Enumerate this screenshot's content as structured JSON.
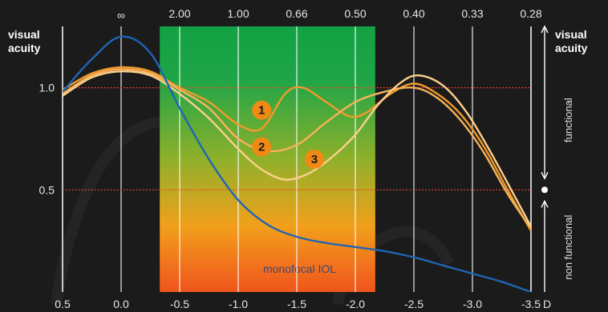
{
  "chart_data": {
    "type": "line",
    "title": "",
    "xlabel": "D",
    "ylabel": "visual acuity",
    "right_ylabel": "visual acuity",
    "x_ticks": [
      "0.5",
      "0.0",
      "-0.5",
      "-1.0",
      "-1.5",
      "-2.0",
      "-2.5",
      "-3.0",
      "-3.5"
    ],
    "x_unit": "D",
    "top_ticks": [
      {
        "at": 0.0,
        "label": "∞"
      },
      {
        "at": -0.5,
        "label": "2.00"
      },
      {
        "at": -1.0,
        "label": "1.00"
      },
      {
        "at": -1.5,
        "label": "0.66"
      },
      {
        "at": -2.0,
        "label": "0.50"
      },
      {
        "at": -2.5,
        "label": "0.40"
      },
      {
        "at": -3.0,
        "label": "0.33"
      },
      {
        "at": -3.5,
        "label": "0.28"
      }
    ],
    "y_ticks": [
      "1.0",
      "0.5"
    ],
    "y_tick_values": [
      1.0,
      0.5
    ],
    "xlim": [
      0.5,
      -3.5
    ],
    "ylim": [
      0,
      1.3
    ],
    "reference_lines": [
      1.0,
      0.5
    ],
    "highlight_band": {
      "from": -0.33,
      "to": -2.17
    },
    "right_annotations": {
      "upper": "functional",
      "lower": "non functional"
    },
    "annotation": "monofocal IOL",
    "series": [
      {
        "label": "1",
        "color": "#f39a2c",
        "points": [
          [
            0.5,
            0.99
          ],
          [
            0.25,
            1.07
          ],
          [
            0.0,
            1.1
          ],
          [
            -0.25,
            1.08
          ],
          [
            -0.5,
            1.0
          ],
          [
            -0.75,
            0.93
          ],
          [
            -1.0,
            0.82
          ],
          [
            -1.2,
            0.8
          ],
          [
            -1.4,
            0.97
          ],
          [
            -1.55,
            1.0
          ],
          [
            -1.75,
            0.93
          ],
          [
            -1.95,
            0.86
          ],
          [
            -2.1,
            0.88
          ],
          [
            -2.3,
            0.97
          ],
          [
            -2.5,
            1.02
          ],
          [
            -2.7,
            0.97
          ],
          [
            -2.9,
            0.87
          ],
          [
            -3.1,
            0.71
          ],
          [
            -3.3,
            0.5
          ],
          [
            -3.5,
            0.3
          ]
        ]
      },
      {
        "label": "2",
        "color": "#f8b25a",
        "points": [
          [
            0.5,
            0.97
          ],
          [
            0.25,
            1.06
          ],
          [
            0.0,
            1.09
          ],
          [
            -0.25,
            1.07
          ],
          [
            -0.5,
            0.99
          ],
          [
            -0.75,
            0.9
          ],
          [
            -1.0,
            0.75
          ],
          [
            -1.25,
            0.69
          ],
          [
            -1.5,
            0.72
          ],
          [
            -1.75,
            0.83
          ],
          [
            -2.0,
            0.93
          ],
          [
            -2.25,
            0.98
          ],
          [
            -2.5,
            1.0
          ],
          [
            -2.7,
            0.95
          ],
          [
            -2.9,
            0.84
          ],
          [
            -3.1,
            0.68
          ],
          [
            -3.3,
            0.48
          ],
          [
            -3.5,
            0.31
          ]
        ]
      },
      {
        "label": "3",
        "color": "#fcd08a",
        "points": [
          [
            0.5,
            0.96
          ],
          [
            0.25,
            1.05
          ],
          [
            0.0,
            1.08
          ],
          [
            -0.25,
            1.06
          ],
          [
            -0.5,
            0.97
          ],
          [
            -0.75,
            0.85
          ],
          [
            -1.0,
            0.7
          ],
          [
            -1.2,
            0.6
          ],
          [
            -1.4,
            0.55
          ],
          [
            -1.6,
            0.58
          ],
          [
            -1.8,
            0.66
          ],
          [
            -2.0,
            0.77
          ],
          [
            -2.2,
            0.92
          ],
          [
            -2.4,
            1.03
          ],
          [
            -2.55,
            1.06
          ],
          [
            -2.75,
            1.01
          ],
          [
            -2.95,
            0.88
          ],
          [
            -3.15,
            0.69
          ],
          [
            -3.35,
            0.48
          ],
          [
            -3.5,
            0.32
          ]
        ]
      },
      {
        "label": "",
        "color": "#1f65b3",
        "points": [
          [
            0.5,
            0.98
          ],
          [
            0.25,
            1.14
          ],
          [
            0.0,
            1.25
          ],
          [
            -0.25,
            1.17
          ],
          [
            -0.5,
            0.9
          ],
          [
            -0.75,
            0.65
          ],
          [
            -1.0,
            0.45
          ],
          [
            -1.25,
            0.33
          ],
          [
            -1.5,
            0.27
          ],
          [
            -1.75,
            0.24
          ],
          [
            -2.0,
            0.22
          ],
          [
            -2.25,
            0.2
          ],
          [
            -2.5,
            0.17
          ],
          [
            -2.75,
            0.13
          ],
          [
            -3.0,
            0.09
          ],
          [
            -3.25,
            0.05
          ],
          [
            -3.5,
            0.0
          ]
        ]
      }
    ]
  }
}
